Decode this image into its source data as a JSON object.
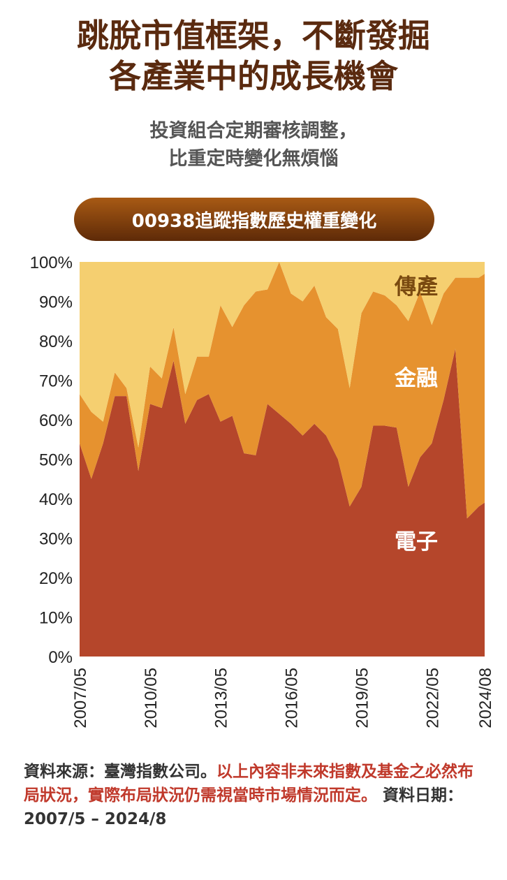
{
  "title": {
    "line1": "跳脫市值框架，不斷發掘",
    "line2": "各產業中的成長機會"
  },
  "subtitle": {
    "line1": "投資組合定期審核調整，",
    "line2": "比重定時變化無煩惱"
  },
  "banner": "00938追蹤指數歷史權重變化",
  "footer": {
    "source": "資料來源：臺灣指數公司。",
    "disclaimer": "以上內容非未來指數及基金之必然布局狀況，實際布局狀況仍需視當時市場情況而定。",
    "date": " 資料日期：2007/5 – 2024/8"
  },
  "colors": {
    "traditional": "#f5cf70",
    "finance": "#e6922f",
    "electronics": "#b5462b",
    "title": "#5a2a0f",
    "disclaimer": "#c0392b"
  },
  "chart_data": {
    "type": "area",
    "stacked": true,
    "ylabel_ticks": [
      "0%",
      "10%",
      "20%",
      "30%",
      "40%",
      "50%",
      "60%",
      "70%",
      "80%",
      "90%",
      "100%"
    ],
    "ylim": [
      0,
      100
    ],
    "xlim": [
      "2007-05",
      "2024-08"
    ],
    "x_tick_labels": [
      "2007/05",
      "2010/05",
      "2013/05",
      "2016/05",
      "2019/05",
      "2022/05",
      "2024/08"
    ],
    "x_tick_dates": [
      "2007-05",
      "2010-05",
      "2013-05",
      "2016-05",
      "2019-05",
      "2022-05",
      "2024-08"
    ],
    "x": [
      "2007-05",
      "2007-11",
      "2008-05",
      "2008-11",
      "2009-05",
      "2009-11",
      "2010-05",
      "2010-11",
      "2011-05",
      "2011-11",
      "2012-05",
      "2012-11",
      "2013-05",
      "2013-11",
      "2014-05",
      "2014-11",
      "2015-05",
      "2015-11",
      "2016-05",
      "2016-11",
      "2017-05",
      "2017-11",
      "2018-05",
      "2018-11",
      "2019-05",
      "2019-11",
      "2020-05",
      "2020-11",
      "2021-05",
      "2021-11",
      "2022-05",
      "2022-11",
      "2023-05",
      "2023-11",
      "2024-05",
      "2024-08"
    ],
    "series": [
      {
        "name": "電子",
        "values": [
          54,
          45,
          54,
          66,
          66,
          47,
          64,
          63,
          75,
          59,
          65,
          66.5,
          59.5,
          61,
          51.5,
          51,
          64,
          61.5,
          59,
          56,
          59,
          56,
          50,
          38,
          43,
          58.5,
          58.5,
          58,
          43,
          50.5,
          54,
          65,
          78,
          35,
          38,
          39
        ]
      },
      {
        "name": "金融",
        "values": [
          12.5,
          17,
          5.5,
          6,
          2,
          6,
          9.5,
          7.5,
          8.5,
          7.5,
          11,
          9.5,
          29.5,
          22.5,
          37.5,
          41.5,
          29,
          38.5,
          33,
          34,
          35,
          30,
          33,
          30,
          44,
          34,
          33,
          31,
          42,
          42,
          30,
          27,
          18,
          61,
          58,
          58
        ]
      },
      {
        "name": "傳產",
        "values": [
          33.5,
          38,
          40.5,
          28,
          32,
          47,
          26.5,
          29.5,
          16.5,
          33.5,
          24,
          24,
          11,
          16.5,
          11,
          7.5,
          7,
          0,
          8,
          10,
          6,
          14,
          17,
          32,
          13,
          7.5,
          8.5,
          11,
          15,
          7.5,
          16,
          8,
          4,
          4,
          4,
          3
        ]
      }
    ]
  }
}
